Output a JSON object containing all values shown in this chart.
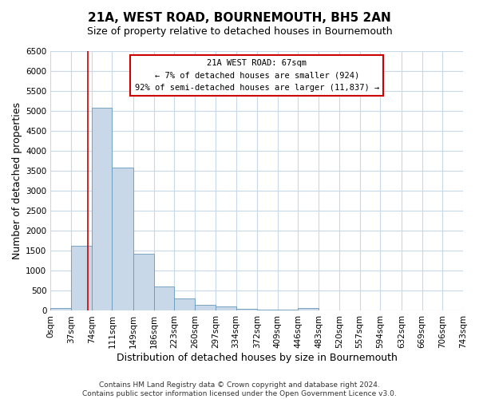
{
  "title": "21A, WEST ROAD, BOURNEMOUTH, BH5 2AN",
  "subtitle": "Size of property relative to detached houses in Bournemouth",
  "xlabel": "Distribution of detached houses by size in Bournemouth",
  "ylabel": "Number of detached properties",
  "bin_edges": [
    0,
    37,
    74,
    111,
    149,
    186,
    223,
    260,
    297,
    334,
    372,
    409,
    446,
    483,
    520,
    557,
    594,
    632,
    669,
    706,
    743
  ],
  "bar_heights": [
    60,
    1620,
    5080,
    3580,
    1420,
    615,
    300,
    150,
    100,
    50,
    30,
    20,
    70,
    5,
    3,
    2,
    1,
    1,
    0,
    0
  ],
  "bar_color": "#c8d8e8",
  "bar_edge_color": "#6699bb",
  "property_size": 67,
  "annotation_title": "21A WEST ROAD: 67sqm",
  "annotation_line1": "← 7% of detached houses are smaller (924)",
  "annotation_line2": "92% of semi-detached houses are larger (11,837) →",
  "annotation_box_color": "#ffffff",
  "annotation_box_edge_color": "#cc0000",
  "vline_color": "#cc0000",
  "ylim": [
    0,
    6500
  ],
  "yticks": [
    0,
    500,
    1000,
    1500,
    2000,
    2500,
    3000,
    3500,
    4000,
    4500,
    5000,
    5500,
    6000,
    6500
  ],
  "footer_line1": "Contains HM Land Registry data © Crown copyright and database right 2024.",
  "footer_line2": "Contains public sector information licensed under the Open Government Licence v3.0.",
  "background_color": "#ffffff",
  "grid_color": "#c8d8e8",
  "title_fontsize": 11,
  "subtitle_fontsize": 9,
  "axis_label_fontsize": 9,
  "tick_fontsize": 7.5,
  "footer_fontsize": 6.5
}
